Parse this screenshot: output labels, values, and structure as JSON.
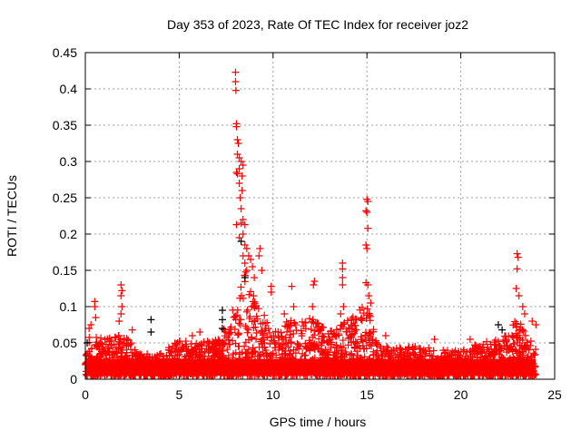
{
  "chart_data": {
    "type": "scatter",
    "title": "Day 353 of 2023, Rate Of TEC Index for receiver joz2",
    "xlabel": "GPS time / hours",
    "ylabel": "ROTI / TECUs",
    "xlim": [
      0,
      25
    ],
    "ylim": [
      0,
      0.45
    ],
    "xticks": [
      "0",
      "5",
      "10",
      "15",
      "20",
      "25"
    ],
    "yticks": [
      "0",
      "0.05",
      "0.1",
      "0.15",
      "0.2",
      "0.25",
      "0.3",
      "0.35",
      "0.4",
      "0.45"
    ],
    "grid": true,
    "marker": "plus",
    "series": [
      {
        "name": "ROTI (red)",
        "color": "#ff0000",
        "points": [
          [
            8.0,
            0.423
          ],
          [
            8.0,
            0.41
          ],
          [
            8.02,
            0.398
          ],
          [
            8.05,
            0.352
          ],
          [
            8.05,
            0.348
          ],
          [
            8.1,
            0.33
          ],
          [
            8.15,
            0.325
          ],
          [
            8.1,
            0.31
          ],
          [
            8.2,
            0.305
          ],
          [
            8.05,
            0.285
          ],
          [
            8.1,
            0.283
          ],
          [
            8.2,
            0.29
          ],
          [
            8.3,
            0.3
          ],
          [
            8.4,
            0.295
          ],
          [
            8.35,
            0.28
          ],
          [
            8.2,
            0.27
          ],
          [
            8.35,
            0.26
          ],
          [
            8.25,
            0.25
          ],
          [
            8.3,
            0.235
          ],
          [
            8.05,
            0.213
          ],
          [
            8.3,
            0.215
          ],
          [
            8.4,
            0.22
          ],
          [
            8.5,
            0.213
          ],
          [
            8.4,
            0.2
          ],
          [
            8.2,
            0.195
          ],
          [
            8.5,
            0.185
          ],
          [
            8.6,
            0.18
          ],
          [
            8.4,
            0.17
          ],
          [
            8.7,
            0.17
          ],
          [
            8.5,
            0.16
          ],
          [
            8.8,
            0.165
          ],
          [
            8.6,
            0.15
          ],
          [
            8.9,
            0.155
          ],
          [
            9.0,
            0.14
          ],
          [
            9.3,
            0.18
          ],
          [
            9.25,
            0.17
          ],
          [
            9.4,
            0.15
          ],
          [
            9.9,
            0.128
          ],
          [
            9.9,
            0.12
          ],
          [
            15.0,
            0.248
          ],
          [
            15.05,
            0.245
          ],
          [
            14.95,
            0.232
          ],
          [
            15.0,
            0.23
          ],
          [
            15.05,
            0.208
          ],
          [
            14.95,
            0.185
          ],
          [
            15.0,
            0.18
          ],
          [
            14.95,
            0.133
          ],
          [
            15.05,
            0.13
          ],
          [
            15.1,
            0.115
          ],
          [
            15.2,
            0.105
          ],
          [
            23.0,
            0.173
          ],
          [
            23.05,
            0.168
          ],
          [
            23.0,
            0.152
          ],
          [
            22.95,
            0.125
          ],
          [
            23.1,
            0.115
          ],
          [
            23.3,
            0.1
          ],
          [
            23.4,
            0.09
          ],
          [
            23.8,
            0.08
          ],
          [
            24.0,
            0.075
          ],
          [
            13.7,
            0.16
          ],
          [
            13.7,
            0.152
          ],
          [
            13.7,
            0.14
          ],
          [
            13.7,
            0.13
          ],
          [
            13.75,
            0.1
          ],
          [
            13.6,
            0.09
          ],
          [
            12.2,
            0.135
          ],
          [
            12.15,
            0.13
          ],
          [
            12.1,
            0.1
          ],
          [
            11.0,
            0.128
          ],
          [
            11.1,
            0.1
          ],
          [
            10.6,
            0.09
          ],
          [
            1.9,
            0.13
          ],
          [
            1.95,
            0.122
          ],
          [
            1.9,
            0.115
          ],
          [
            1.95,
            0.1
          ],
          [
            1.9,
            0.09
          ],
          [
            1.8,
            0.08
          ],
          [
            0.5,
            0.107
          ],
          [
            0.5,
            0.1
          ],
          [
            0.55,
            0.085
          ],
          [
            0.3,
            0.075
          ],
          [
            0.2,
            0.07
          ],
          [
            2.5,
            0.068
          ],
          [
            6.1,
            0.065
          ],
          [
            5.7,
            0.06
          ],
          [
            18.6,
            0.055
          ],
          [
            16.0,
            0.06
          ],
          [
            20.5,
            0.055
          ]
        ]
      },
      {
        "name": "ROTI (black)",
        "color": "#000000",
        "points": [
          [
            3.5,
            0.082
          ],
          [
            3.5,
            0.065
          ],
          [
            8.3,
            0.19
          ],
          [
            8.5,
            0.14
          ],
          [
            7.3,
            0.095
          ],
          [
            7.3,
            0.082
          ],
          [
            7.3,
            0.07
          ],
          [
            22.0,
            0.075
          ],
          [
            22.2,
            0.068
          ],
          [
            0.1,
            0.05
          ]
        ]
      }
    ],
    "background": {
      "color": "#ff0000",
      "count": 2600,
      "envelope_hours": [
        0,
        1,
        2,
        3,
        4,
        5,
        6,
        7,
        7.8,
        8.5,
        9.2,
        10,
        11,
        12,
        13,
        14,
        15,
        15.5,
        16,
        17,
        18,
        19,
        20,
        21,
        22,
        23,
        24
      ],
      "envelope_max_roti": [
        0.06,
        0.05,
        0.06,
        0.03,
        0.03,
        0.05,
        0.045,
        0.05,
        0.09,
        0.15,
        0.1,
        0.06,
        0.08,
        0.08,
        0.06,
        0.08,
        0.1,
        0.05,
        0.04,
        0.04,
        0.04,
        0.035,
        0.035,
        0.045,
        0.05,
        0.08,
        0.04
      ]
    }
  }
}
